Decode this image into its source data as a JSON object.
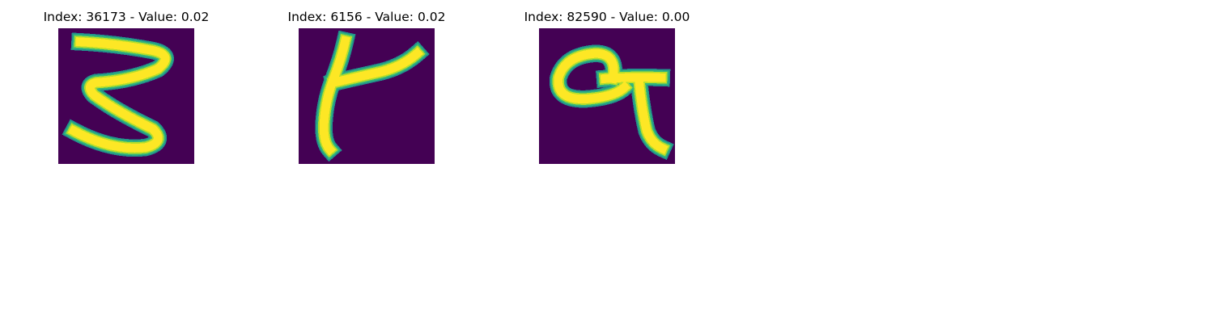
{
  "colormap": {
    "background": "#440154",
    "stroke_core": "#fde725",
    "stroke_mid": "#b5de2b",
    "stroke_edge": "#35b779",
    "stroke_outer": "#21918c"
  },
  "panels": [
    {
      "title": "Index: 36173 - Value: 0.02",
      "digit": "3"
    },
    {
      "title": "Index: 6156 - Value: 0.02",
      "digit": "4"
    },
    {
      "title": "Index: 82590 - Value: 0.00",
      "digit": "9"
    }
  ]
}
